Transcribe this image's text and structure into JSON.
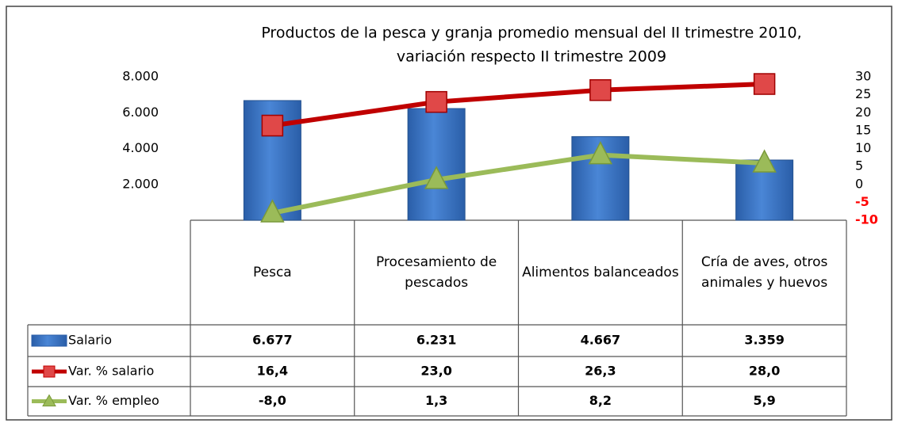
{
  "chart_data": {
    "type": "bar-line-table",
    "title": "Productos de la pesca y granja promedio mensual del II trimestre 2010,",
    "subtitle": "variación respecto II trimestre 2009",
    "categories": [
      "Pesca",
      "Procesamiento de pescados",
      "Alimentos balanceados",
      "Cría de aves, otros animales y huevos"
    ],
    "series": [
      {
        "name": "Salario",
        "color": "#3b73c4",
        "type": "bar",
        "values": [
          6677,
          6231,
          4667,
          3359
        ],
        "value_labels": [
          "6.677",
          "6.231",
          "4.667",
          "3.359"
        ]
      },
      {
        "name": "Var. % salario",
        "color": "#c00000",
        "type": "line",
        "marker": "square",
        "axis": "y2",
        "values": [
          16.4,
          23.0,
          26.3,
          28.0
        ],
        "value_labels": [
          "16,4",
          "23,0",
          "26,3",
          "28,0"
        ]
      },
      {
        "name": "Var. % empleo",
        "color": "#9bbb59",
        "type": "line",
        "marker": "triangle",
        "axis": "y2",
        "values": [
          -8.0,
          1.3,
          8.2,
          5.9
        ],
        "value_labels": [
          "-8,0",
          "1,3",
          "8,2",
          "5,9"
        ]
      }
    ],
    "ylim": [
      0,
      8000
    ],
    "yticks": [
      {
        "value": 2000,
        "label": "2.000"
      },
      {
        "value": 4000,
        "label": "4.000"
      },
      {
        "value": 6000,
        "label": "6.000"
      },
      {
        "value": 8000,
        "label": "8.000"
      }
    ],
    "y2lim": [
      -10,
      30
    ],
    "y2ticks": [
      -10,
      -5,
      0,
      5,
      10,
      15,
      20,
      25,
      30
    ]
  }
}
